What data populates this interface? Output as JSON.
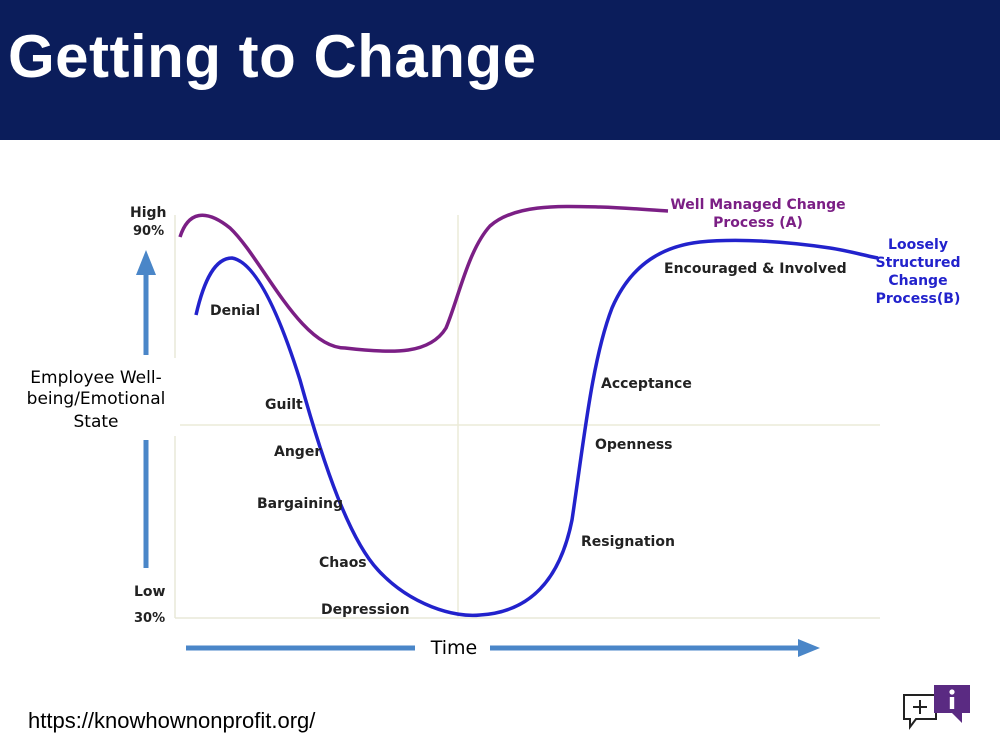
{
  "slide": {
    "title": "Getting to Change",
    "footer_url": "https://knowhownonprofit.org/"
  },
  "colors": {
    "header_bg": "#0b1d5b",
    "curve_a": "#7b1f85",
    "curve_b": "#2222cc",
    "arrow": "#4a86c8",
    "label_text": "#222222"
  },
  "axis": {
    "y_label_lines": [
      "Employee Well-",
      "being/Emotional",
      "State"
    ],
    "high_label": "High",
    "high_pct": "90%",
    "low_label": "Low",
    "low_pct": "30%",
    "x_label": "Time"
  },
  "curves": {
    "a_label_lines": [
      "Well Managed  Change",
      "Process (A)"
    ],
    "b_label_lines": [
      "Loosely",
      "Structured",
      "Change",
      "Process(B)"
    ]
  },
  "stages": {
    "denial": "Denial",
    "guilt": "Guilt",
    "anger": "Anger",
    "bargaining": "Bargaining",
    "chaos": "Chaos",
    "depression": "Depression",
    "resignation": "Resignation",
    "openness": "Openness",
    "acceptance": "Acceptance",
    "encouraged": "Encouraged & Involved"
  },
  "logo_icons": [
    "chat-bubble-icon",
    "info-bubble-icon"
  ]
}
